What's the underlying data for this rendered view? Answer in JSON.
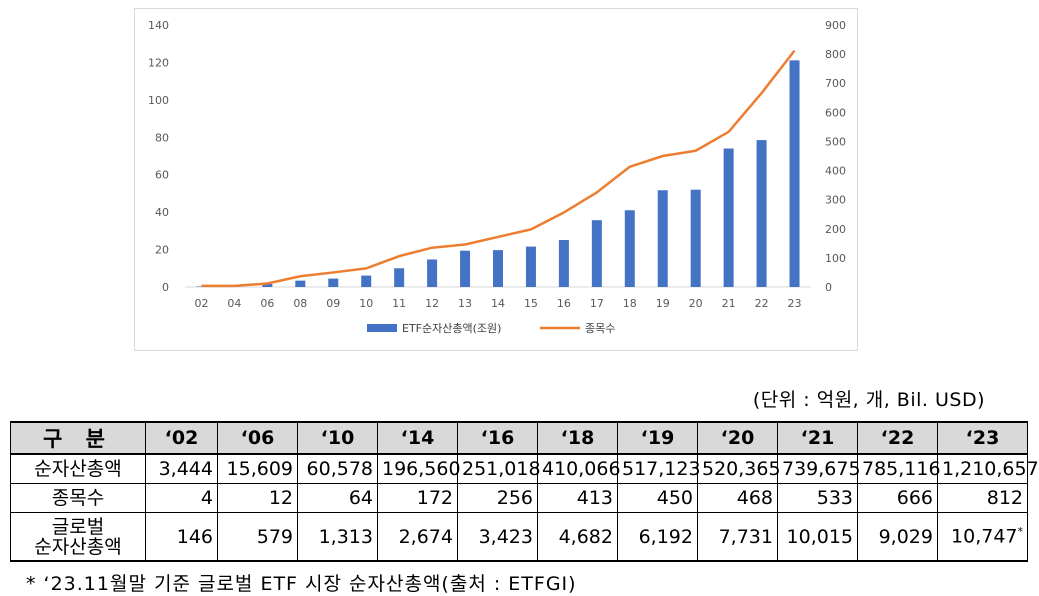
{
  "chart_data": {
    "type": "bar",
    "categories": [
      "02",
      "04",
      "06",
      "08",
      "09",
      "10",
      "11",
      "12",
      "13",
      "14",
      "15",
      "16",
      "17",
      "18",
      "19",
      "20",
      "21",
      "22",
      "23"
    ],
    "series": [
      {
        "name": "ETF순자산총액(조원)",
        "type": "bar",
        "axis": "left",
        "color": "#4472c4",
        "values": [
          0.3,
          0.5,
          1.6,
          3.4,
          4.5,
          6.1,
          10.0,
          14.7,
          19.4,
          19.7,
          21.6,
          25.1,
          35.7,
          41.0,
          51.7,
          52.0,
          74.0,
          78.5,
          121.1
        ]
      },
      {
        "name": "종목수",
        "type": "line",
        "axis": "right",
        "color": "#ed7d31",
        "values": [
          4,
          4,
          12,
          37,
          50,
          64,
          106,
          135,
          146,
          172,
          198,
          256,
          325,
          413,
          450,
          468,
          533,
          666,
          812
        ]
      }
    ],
    "y_left": {
      "min": 0,
      "max": 140,
      "ticks": [
        0,
        20,
        40,
        60,
        80,
        100,
        120,
        140
      ]
    },
    "y_right": {
      "min": 0,
      "max": 900,
      "ticks": [
        0,
        100,
        200,
        300,
        400,
        500,
        600,
        700,
        800,
        900
      ]
    },
    "legend_position": "bottom",
    "grid": false
  },
  "unit_note": "(단위 : 억원, 개, Bil. USD)",
  "table": {
    "header": [
      "구 분",
      "‘02",
      "‘06",
      "‘10",
      "‘14",
      "‘16",
      "‘18",
      "‘19",
      "‘20",
      "‘21",
      "‘22",
      "‘23"
    ],
    "rows": [
      {
        "label": "순자산총액",
        "label2": "",
        "values": [
          "3,444",
          "15,609",
          "60,578",
          "196,560",
          "251,018",
          "410,066",
          "517,123",
          "520,365",
          "739,675",
          "785,116",
          "1,210,657"
        ]
      },
      {
        "label": "종목수",
        "label2": "",
        "values": [
          "4",
          "12",
          "64",
          "172",
          "256",
          "413",
          "450",
          "468",
          "533",
          "666",
          "812"
        ]
      },
      {
        "label": "글로벌",
        "label2": "순자산총액",
        "values": [
          "146",
          "579",
          "1,313",
          "2,674",
          "3,423",
          "4,682",
          "6,192",
          "7,731",
          "10,015",
          "9,029",
          "10,747"
        ],
        "last_mark": "*"
      }
    ]
  },
  "footnote": "* ‘23.11월말 기준 글로벌 ETF 시장 순자산총액(출처 : ETFGI)"
}
